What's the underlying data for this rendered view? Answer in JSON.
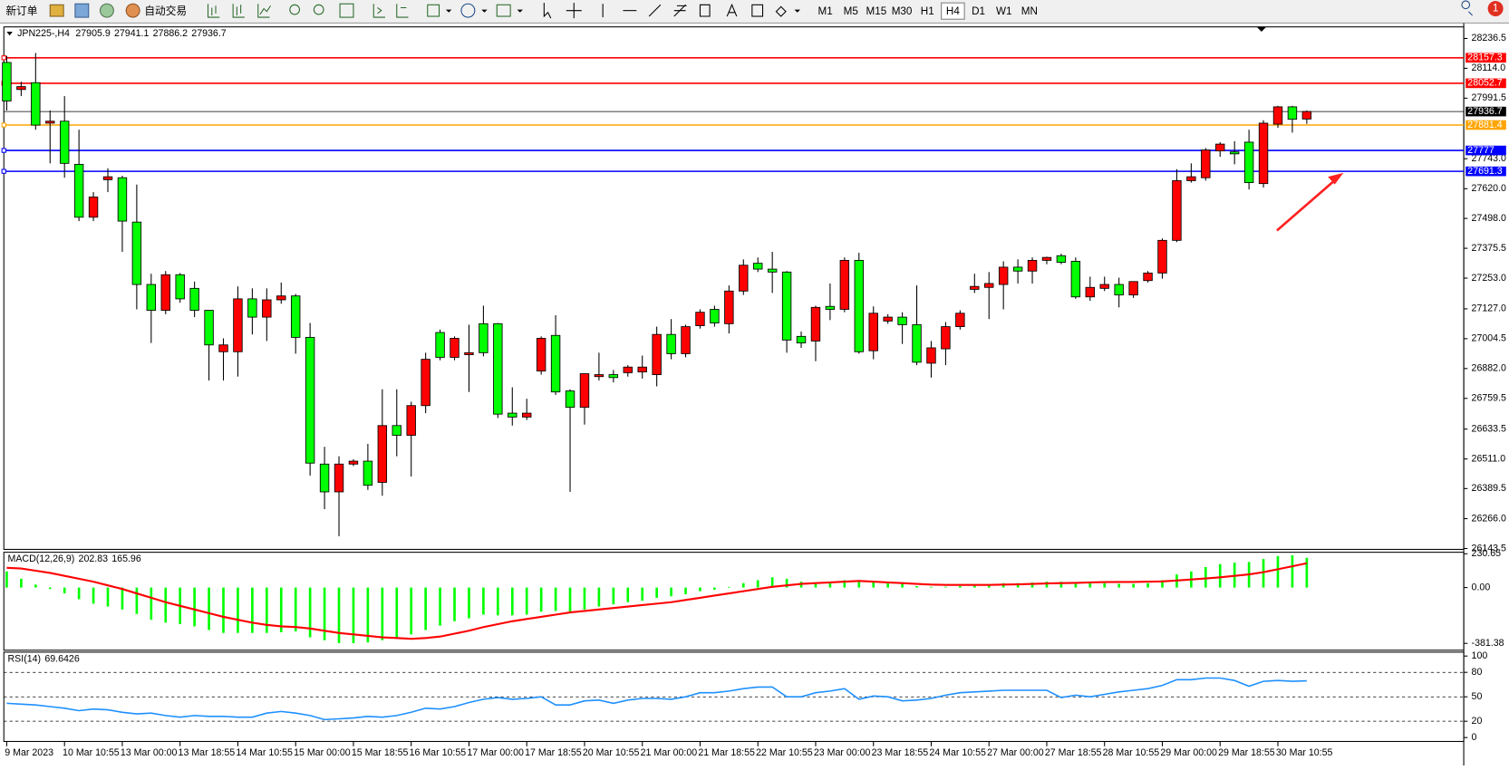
{
  "toolbar": {
    "new_order": "新订单",
    "auto_trade": "自动交易",
    "timeframes": [
      "M1",
      "M5",
      "M15",
      "M30",
      "H1",
      "H4",
      "D1",
      "W1",
      "MN"
    ],
    "active_timeframe": "H4",
    "notification_count": 1
  },
  "chart_data": [
    {
      "type": "candlestick",
      "symbol": "JPN225-,H4",
      "up_color": "#ff0000",
      "down_color": "#00ff00",
      "x": [
        "9 Mar 2023",
        null,
        null,
        null,
        "10 Mar 10:55",
        null,
        null,
        null,
        "13 Mar 00:00",
        null,
        null,
        null,
        "13 Mar 18:55",
        null,
        null,
        null,
        "14 Mar 10:55",
        null,
        null,
        null,
        "15 Mar 00:00",
        null,
        null,
        null,
        "15 Mar 18:55",
        null,
        null,
        null,
        "16 Mar 10:55",
        null,
        null,
        null,
        "17 Mar 00:00",
        null,
        null,
        null,
        "17 Mar 18:55",
        null,
        null,
        null,
        "20 Mar 10:55",
        null,
        null,
        null,
        "21 Mar 00:00",
        null,
        null,
        null,
        "21 Mar 18:55",
        null,
        null,
        null,
        "22 Mar 10:55",
        null,
        null,
        null,
        "23 Mar 00:00",
        null,
        null,
        null,
        "23 Mar 18:55",
        null,
        null,
        null,
        "24 Mar 10:55",
        null,
        null,
        null,
        "27 Mar 00:00",
        null,
        null,
        null,
        "27 Mar 18:55",
        null,
        null,
        null,
        "28 Mar 10:55",
        null,
        null,
        null,
        "29 Mar 00:00",
        null,
        null,
        null,
        "29 Mar 18:55",
        null,
        null,
        null,
        "30 Mar 10:55",
        null,
        null
      ],
      "open": [
        28138,
        28027,
        28055,
        27889,
        27897,
        27720,
        27503,
        27657,
        27665,
        27483,
        27227,
        27121,
        27267,
        27211,
        27121,
        26951,
        26951,
        27168,
        27093,
        27164,
        27180,
        27010,
        26490,
        26376,
        26490,
        26502,
        26415,
        26648,
        26608,
        26730,
        27030,
        26928,
        26939,
        27066,
        27066,
        26699,
        26683,
        26872,
        27018,
        26790,
        26723,
        26849,
        26857,
        26865,
        26868,
        26857,
        27022,
        26943,
        27058,
        27125,
        27066,
        27200,
        27314,
        27290,
        27278,
        27014,
        26995,
        27137,
        27125,
        27326,
        26955,
        27077,
        27093,
        27062,
        26904,
        26963,
        27054,
        27207,
        27215,
        27227,
        27298,
        27282,
        27326,
        27345,
        27322,
        27176,
        27211,
        27227,
        27184,
        27243,
        27274,
        27408,
        27653,
        27665,
        27775,
        27771,
        27811,
        27641,
        27885,
        27956,
        27905.9
      ],
      "high": [
        28165,
        28059,
        28177,
        27941,
        28000,
        27862,
        27606,
        27704,
        27673,
        27637,
        27271,
        27282,
        27274,
        27239,
        27121,
        27006,
        27219,
        27211,
        27211,
        27235,
        27188,
        27069,
        26561,
        26522,
        26510,
        26573,
        26797,
        26797,
        26746,
        26947,
        27042,
        27014,
        27062,
        27140,
        27069,
        26805,
        26758,
        27014,
        27101,
        26797,
        26857,
        26947,
        26876,
        26896,
        26935,
        27054,
        27085,
        27062,
        27125,
        27140,
        27223,
        27330,
        27338,
        27361,
        27282,
        27034,
        27140,
        27231,
        27338,
        27357,
        27137,
        27105,
        27113,
        27223,
        26995,
        27073,
        27121,
        27271,
        27278,
        27322,
        27330,
        27338,
        27341,
        27353,
        27338,
        27259,
        27259,
        27255,
        27239,
        27282,
        27416,
        27700,
        27724,
        27787,
        27811,
        27815,
        27862,
        27901,
        27960,
        27960,
        27941.1
      ],
      "low": [
        27941,
        28000,
        27862,
        27724,
        27665,
        27487,
        27487,
        27606,
        27361,
        27125,
        26987,
        27105,
        27152,
        27093,
        26833,
        26833,
        26849,
        27022,
        26995,
        27148,
        26943,
        26443,
        26305,
        26194,
        26482,
        26384,
        26360,
        26522,
        26439,
        26699,
        26916,
        26916,
        26786,
        26932,
        26679,
        26648,
        26671,
        26857,
        26774,
        26376,
        26652,
        26833,
        26825,
        26849,
        26841,
        26809,
        26920,
        26928,
        27046,
        27054,
        27026,
        27184,
        27278,
        27192,
        26947,
        26967,
        26912,
        27081,
        27113,
        26943,
        26920,
        27066,
        26983,
        26896,
        26845,
        26896,
        27042,
        27192,
        27085,
        27125,
        27231,
        27231,
        27310,
        27310,
        27168,
        27160,
        27200,
        27133,
        27172,
        27235,
        27251,
        27401,
        27645,
        27653,
        27751,
        27720,
        27617,
        27625,
        27870,
        27850,
        27886.2
      ],
      "close": [
        27980,
        28039,
        27881,
        27897,
        27724,
        27503,
        27586,
        27669,
        27487,
        27227,
        27121,
        27267,
        27168,
        27121,
        26979,
        26979,
        27168,
        27093,
        27164,
        27180,
        27010,
        26494,
        26376,
        26490,
        26502,
        26403,
        26648,
        26608,
        26730,
        26920,
        26928,
        27006,
        26947,
        26947,
        26695,
        26683,
        26699,
        27006,
        26786,
        26723,
        26861,
        26857,
        26845,
        26888,
        26888,
        27022,
        26943,
        27054,
        27113,
        27069,
        27200,
        27306,
        27290,
        27278,
        26999,
        26987,
        27133,
        27125,
        27326,
        26951,
        27109,
        27093,
        27062,
        26908,
        26967,
        27054,
        27109,
        27219,
        27231,
        27298,
        27282,
        27326,
        27338,
        27318,
        27176,
        27215,
        27227,
        27184,
        27239,
        27274,
        27408,
        27653,
        27669,
        27779,
        27803,
        27763,
        27645,
        27889,
        27956,
        27905,
        27936.7
      ],
      "hlines": [
        {
          "value": 28157.3,
          "color": "#ff0000"
        },
        {
          "value": 28052.7,
          "color": "#ff0000"
        },
        {
          "value": 27881.4,
          "color": "#ffa500"
        },
        {
          "value": 27777.0,
          "color": "#0000ff"
        },
        {
          "value": 27691.3,
          "color": "#0000ff"
        }
      ],
      "ylim": [
        26140,
        28284
      ],
      "yticks": [
        28236.5,
        {
          "value": 28114,
          "label": "28114.0"
        },
        27991.5,
        {
          "value": 27743,
          "label": "27743.0"
        },
        {
          "value": 27620,
          "label": "27620.0"
        },
        {
          "value": 27498,
          "label": "27498.0"
        },
        27375.5,
        {
          "value": 27253,
          "label": "27253.0"
        },
        {
          "value": 27127,
          "label": "27127.0"
        },
        27004.5,
        {
          "value": 26882,
          "label": "26882.0"
        },
        26759.5,
        26633.5,
        {
          "value": 26511,
          "label": "26511.0"
        },
        26389.5,
        {
          "value": 26266,
          "label": "26266.0"
        },
        26143.5
      ]
    },
    {
      "type": "macd",
      "title": "MACD(12,26,9)",
      "histogram": {
        "color": "#00ff00",
        "values": [
          110,
          60,
          20,
          -10,
          -40,
          -80,
          -110,
          -130,
          -150,
          -180,
          -220,
          -240,
          -250,
          -265,
          -290,
          -310,
          -310,
          -310,
          -310,
          -305,
          -300,
          -340,
          -360,
          -380,
          -380,
          -375,
          -360,
          -340,
          -320,
          -290,
          -260,
          -230,
          -210,
          -185,
          -190,
          -190,
          -185,
          -165,
          -160,
          -165,
          -150,
          -130,
          -115,
          -100,
          -90,
          -70,
          -60,
          -45,
          -25,
          -15,
          5,
          30,
          50,
          70,
          60,
          40,
          35,
          40,
          50,
          40,
          40,
          35,
          30,
          10,
          5,
          5,
          10,
          15,
          20,
          30,
          30,
          35,
          40,
          40,
          35,
          30,
          30,
          25,
          25,
          30,
          50,
          90,
          110,
          140,
          160,
          170,
          175,
          195,
          215,
          220,
          202.83
        ]
      },
      "signal": {
        "color": "#ff0000",
        "values": [
          135,
          130,
          115,
          100,
          80,
          60,
          40,
          15,
          -10,
          -40,
          -70,
          -100,
          -125,
          -150,
          -175,
          -200,
          -220,
          -240,
          -255,
          -265,
          -270,
          -280,
          -295,
          -310,
          -320,
          -330,
          -340,
          -345,
          -350,
          -345,
          -335,
          -315,
          -295,
          -270,
          -250,
          -230,
          -215,
          -200,
          -185,
          -170,
          -160,
          -150,
          -140,
          -130,
          -120,
          -110,
          -100,
          -85,
          -70,
          -55,
          -40,
          -25,
          -10,
          5,
          15,
          25,
          30,
          35,
          40,
          45,
          40,
          35,
          30,
          25,
          20,
          18,
          18,
          18,
          18,
          20,
          22,
          25,
          28,
          30,
          32,
          35,
          37,
          38,
          38,
          40,
          42,
          48,
          55,
          62,
          70,
          80,
          90,
          105,
          125,
          145,
          165.96
        ]
      },
      "ylim": [
        -428,
        241
      ],
      "yticks": [
        230.65,
        {
          "value": 0,
          "label": "0.00"
        },
        -381.38
      ]
    },
    {
      "type": "line",
      "title": "RSI(14)",
      "color": "#1e90ff",
      "values": [
        42,
        41,
        40,
        38,
        36,
        33,
        35,
        34,
        31,
        29,
        30,
        27,
        25,
        27,
        26,
        26,
        25,
        25,
        30,
        32,
        30,
        27,
        22,
        23,
        24,
        26,
        25,
        27,
        31,
        36,
        35,
        38,
        43,
        47,
        49,
        47,
        48,
        50,
        40,
        40,
        45,
        46,
        42,
        46,
        48,
        48,
        47,
        50,
        55,
        55,
        57,
        60,
        62,
        62,
        50,
        50,
        55,
        57,
        60,
        47,
        51,
        50,
        45,
        46,
        48,
        52,
        55,
        56,
        57,
        58,
        58,
        58,
        58,
        49,
        52,
        50,
        53,
        56,
        58,
        60,
        64,
        71,
        71,
        73,
        73,
        70,
        63,
        69,
        70,
        69,
        69.6426
      ],
      "levels": [
        80,
        50,
        20
      ],
      "ylim": [
        -4.8,
        104.8
      ],
      "yticks": [
        100,
        80,
        50,
        20,
        0
      ]
    }
  ]
}
